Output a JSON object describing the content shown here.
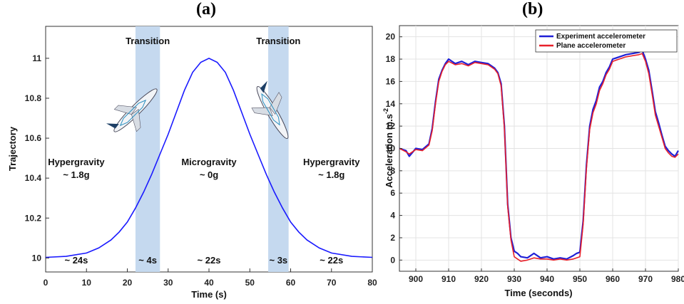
{
  "panels": {
    "a_label": "(a)",
    "b_label": "(b)"
  },
  "chart_data": [
    {
      "type": "line",
      "panel": "(a)",
      "xlabel": "Time (s)",
      "ylabel": "Trajectory",
      "xlim": [
        0,
        80
      ],
      "ylim": [
        9.93,
        11.16
      ],
      "xticks": [
        0,
        10,
        20,
        30,
        40,
        50,
        60,
        70,
        80
      ],
      "yticks": [
        10,
        10.2,
        10.4,
        10.6,
        10.8,
        11
      ],
      "series": [
        {
          "color": "#1a1aff",
          "x": [
            0,
            5,
            10,
            13,
            16,
            18,
            20,
            22,
            24,
            26,
            28,
            30,
            32,
            34,
            36,
            38,
            40,
            42,
            44,
            46,
            48,
            50,
            52,
            54,
            56,
            58,
            60,
            62,
            64,
            67,
            70,
            75,
            80
          ],
          "y": [
            10.003,
            10.008,
            10.025,
            10.05,
            10.09,
            10.13,
            10.18,
            10.25,
            10.33,
            10.42,
            10.52,
            10.62,
            10.73,
            10.84,
            10.93,
            10.98,
            11.0,
            10.98,
            10.93,
            10.84,
            10.73,
            10.62,
            10.52,
            10.42,
            10.33,
            10.25,
            10.18,
            10.13,
            10.09,
            10.05,
            10.025,
            10.008,
            10.003
          ]
        }
      ],
      "shaded_regions": [
        {
          "x0": 22,
          "x1": 28,
          "label": "Transition",
          "duration": "~ 4s"
        },
        {
          "x0": 54.5,
          "x1": 59.5,
          "label": "Transition",
          "duration": "~ 3s"
        }
      ],
      "phases": [
        {
          "name": "Hypergravity",
          "g": "~ 1.8g",
          "duration": "~ 24s"
        },
        {
          "name": "Microgravity",
          "g": "~ 0g",
          "duration": "~ 22s"
        },
        {
          "name": "Hypergravity",
          "g": "~ 1.8g",
          "duration": "~ 22s"
        }
      ],
      "grid": false,
      "colors": {
        "line": "#1a1aff",
        "shade": "#c5d9ef"
      }
    },
    {
      "type": "line",
      "panel": "(b)",
      "xlabel": "Time (seconds)",
      "ylabel": "Acceleration m.s",
      "ylabel_superscript": "-2",
      "xlim": [
        895,
        980
      ],
      "ylim": [
        -1,
        21
      ],
      "xticks": [
        900,
        910,
        920,
        930,
        940,
        950,
        960,
        970,
        980
      ],
      "yticks": [
        0,
        2,
        4,
        6,
        8,
        10,
        12,
        14,
        16,
        18,
        20
      ],
      "grid": true,
      "legend_position": "top-right",
      "series": [
        {
          "name": "Experiment accelerometer",
          "color": "#1f1fd6",
          "x": [
            895,
            897,
            898,
            900,
            902,
            904,
            905,
            906,
            907,
            908,
            909,
            910,
            912,
            914,
            916,
            918,
            920,
            922,
            924,
            925,
            926,
            927,
            928,
            929,
            930,
            931,
            932,
            934,
            936,
            938,
            940,
            942,
            944,
            946,
            948,
            949,
            950,
            951,
            952,
            953,
            954,
            955,
            956,
            957,
            958,
            959,
            960,
            962,
            964,
            966,
            968,
            969,
            970,
            971,
            972,
            973,
            974,
            975,
            976,
            977,
            978,
            979,
            980
          ],
          "y": [
            10.0,
            9.8,
            9.3,
            10.0,
            9.9,
            10.4,
            11.8,
            14.2,
            16.2,
            17.0,
            17.6,
            18.0,
            17.6,
            17.8,
            17.5,
            17.8,
            17.7,
            17.6,
            17.2,
            16.8,
            15.8,
            12.0,
            5.0,
            2.0,
            0.8,
            0.6,
            0.3,
            0.2,
            0.6,
            0.2,
            0.3,
            0.1,
            0.2,
            0.1,
            0.4,
            0.6,
            0.7,
            3.5,
            8.5,
            12.0,
            13.5,
            14.3,
            15.5,
            16.0,
            16.8,
            17.3,
            18.0,
            18.2,
            18.4,
            18.5,
            18.6,
            18.8,
            18.0,
            17.0,
            15.2,
            13.3,
            12.3,
            11.2,
            10.2,
            9.8,
            9.5,
            9.3,
            9.8
          ]
        },
        {
          "name": "Plane accelerometer",
          "color": "#e8202a",
          "x": [
            895,
            897,
            898,
            900,
            902,
            904,
            905,
            906,
            907,
            908,
            909,
            910,
            912,
            914,
            916,
            918,
            920,
            922,
            924,
            925,
            926,
            927,
            928,
            929,
            930,
            931,
            932,
            934,
            936,
            938,
            940,
            942,
            944,
            946,
            948,
            949,
            950,
            951,
            952,
            953,
            954,
            955,
            956,
            957,
            958,
            959,
            960,
            962,
            964,
            966,
            968,
            969,
            970,
            971,
            972,
            973,
            974,
            975,
            976,
            977,
            978,
            979,
            980
          ],
          "y": [
            10.0,
            9.7,
            9.5,
            9.9,
            9.8,
            10.3,
            11.6,
            14.0,
            16.0,
            16.9,
            17.5,
            17.8,
            17.5,
            17.6,
            17.4,
            17.7,
            17.6,
            17.5,
            17.1,
            16.7,
            15.6,
            11.8,
            4.8,
            1.8,
            0.3,
            0.1,
            -0.1,
            0.0,
            0.2,
            0.1,
            0.1,
            0.0,
            0.1,
            0.0,
            0.1,
            0.2,
            0.3,
            3.2,
            8.2,
            11.7,
            13.2,
            14.0,
            15.2,
            15.8,
            16.6,
            17.1,
            17.8,
            18.0,
            18.2,
            18.3,
            18.4,
            18.5,
            17.8,
            16.7,
            14.9,
            13.0,
            12.0,
            11.0,
            10.0,
            9.6,
            9.3,
            9.2,
            9.5
          ]
        }
      ]
    }
  ]
}
